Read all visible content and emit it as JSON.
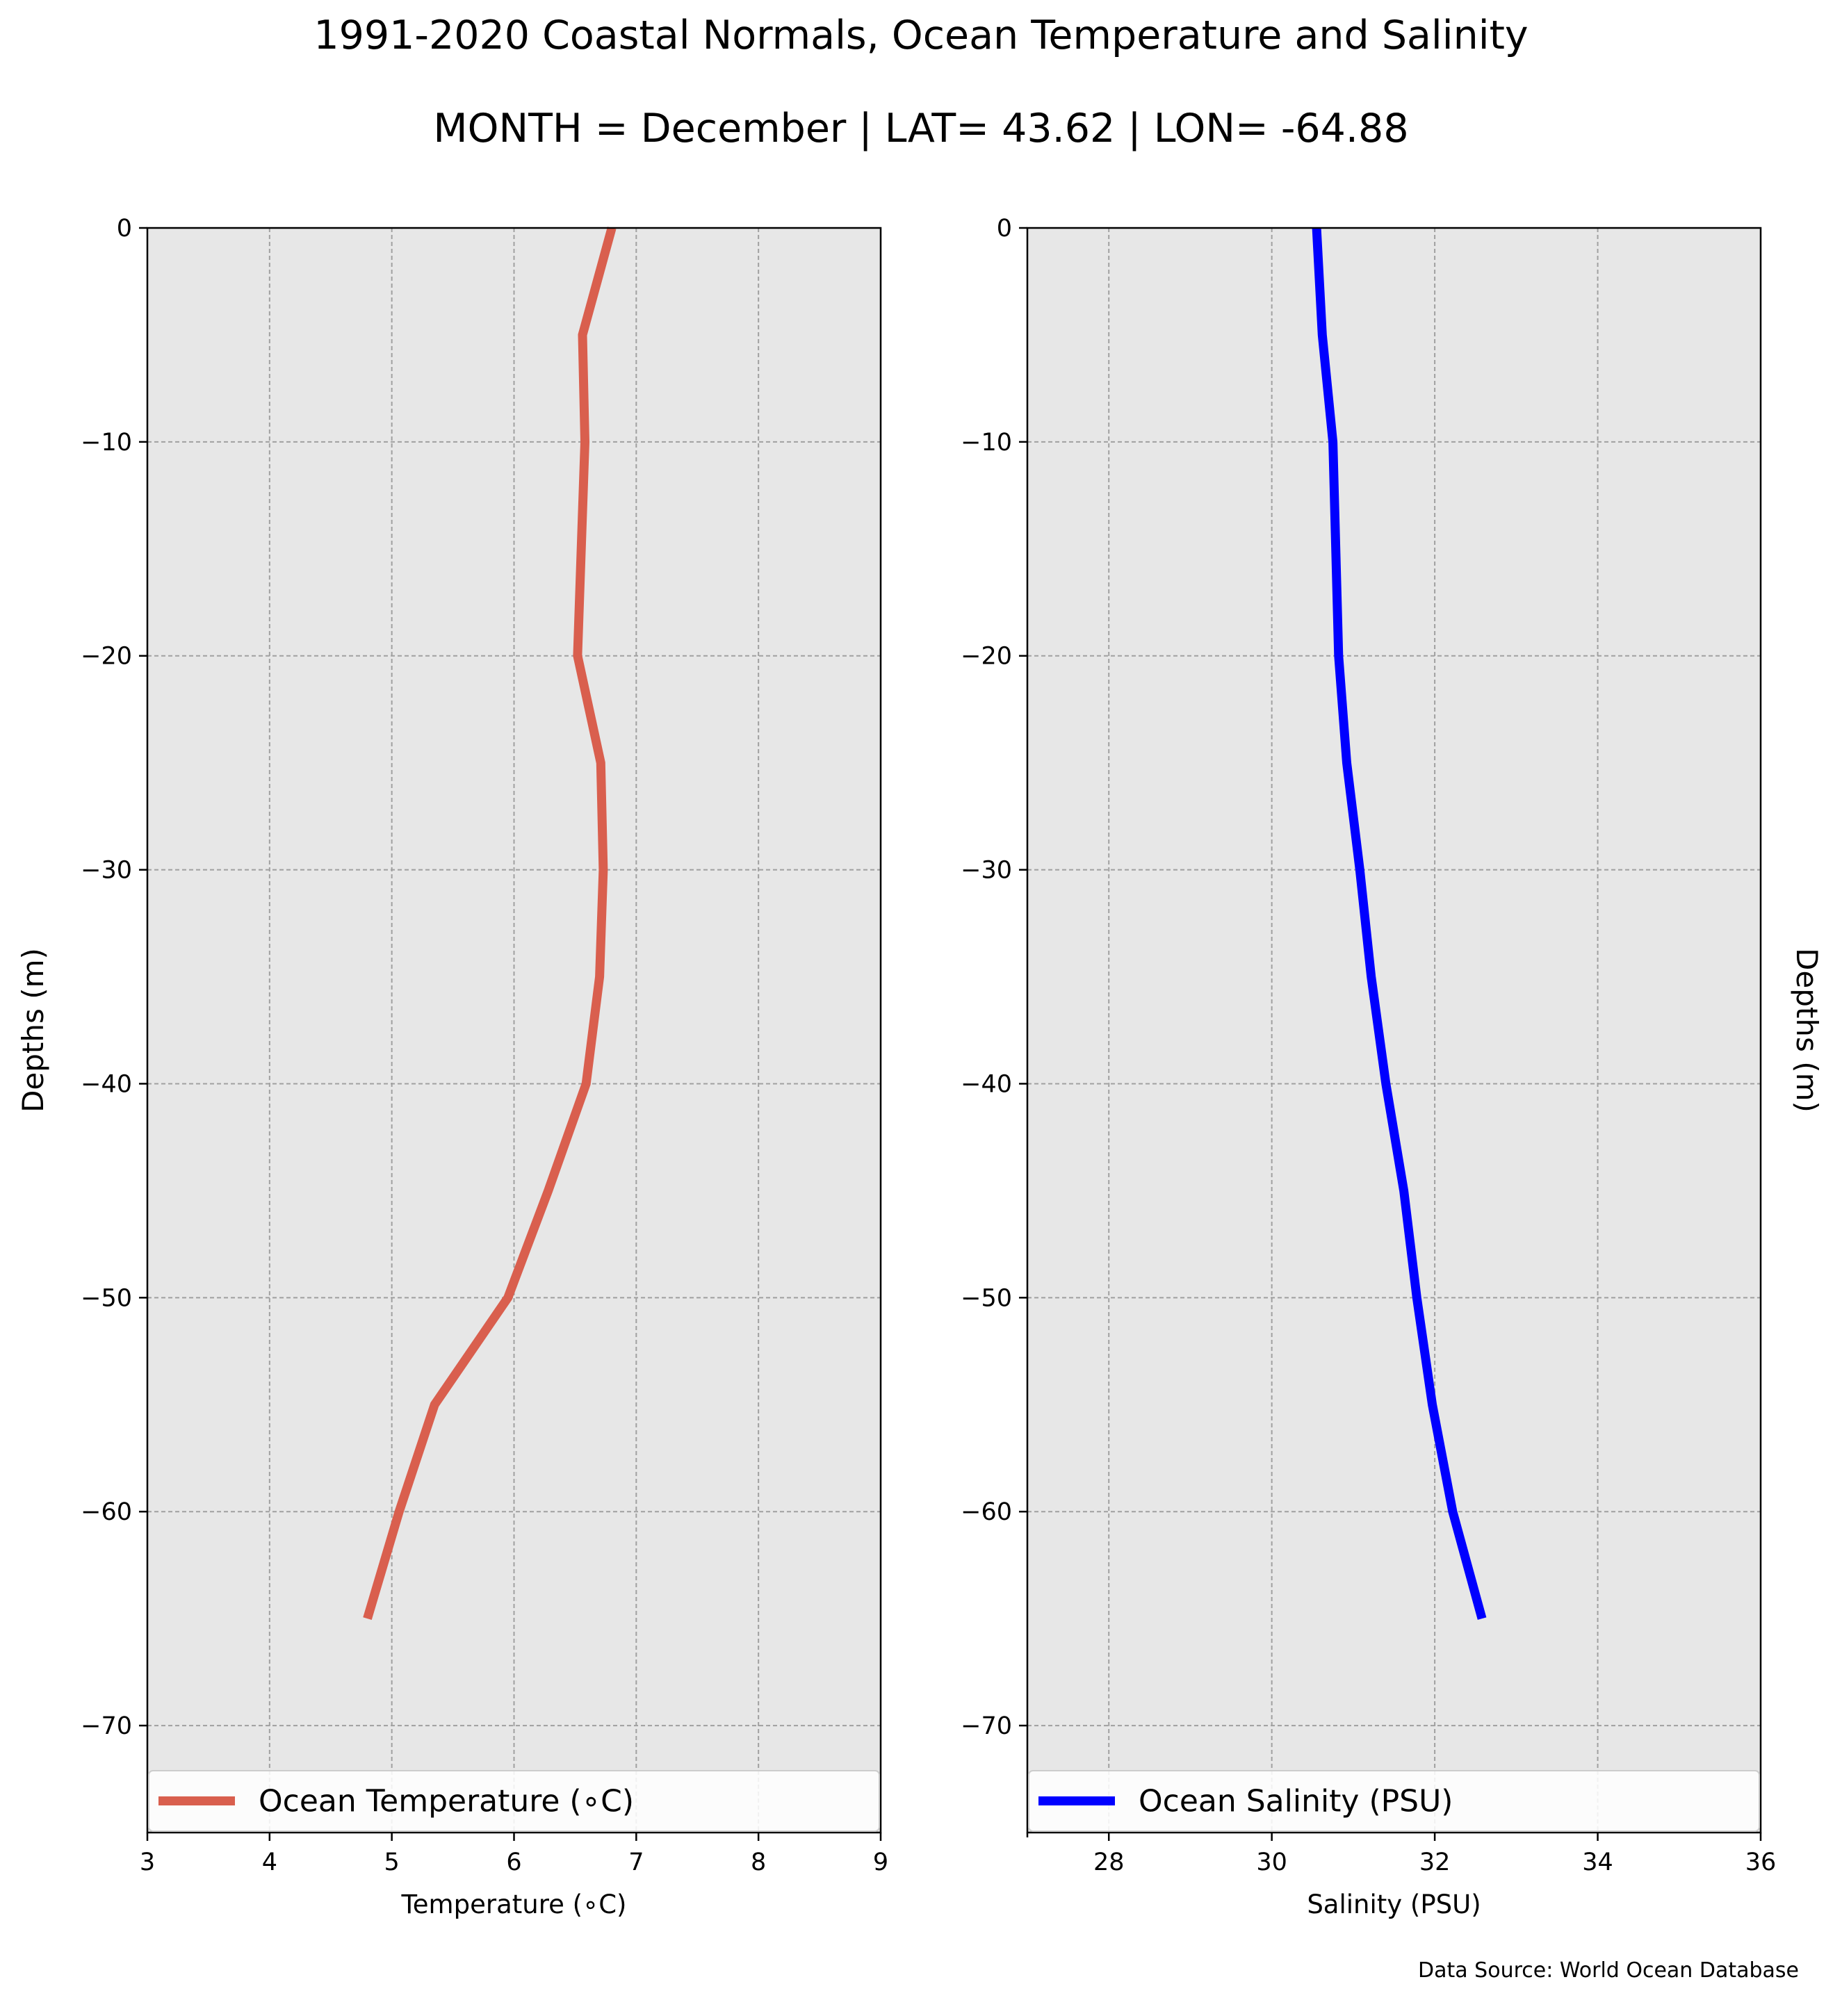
{
  "title": "1991-2020 Coastal Normals, Ocean Temperature and Salinity",
  "subtitle": "MONTH = December | LAT= 43.62 | LON= -64.88",
  "source": "Data Source: World Ocean Database",
  "chart_data": [
    {
      "type": "line",
      "xlabel": "Temperature (∘C)",
      "ylabel": "Depths (m)",
      "xlim": [
        3,
        9
      ],
      "ylim": [
        -75,
        0
      ],
      "xticks": [
        3,
        4,
        5,
        6,
        7,
        8,
        9
      ],
      "yticks": [
        0,
        -10,
        -20,
        -30,
        -40,
        -50,
        -60,
        -70
      ],
      "grid": true,
      "legend_position": "bottom",
      "series": [
        {
          "name": "Ocean Temperature (∘C)",
          "color": "#d95f4e",
          "x": [
            6.8,
            6.56,
            6.58,
            6.52,
            6.71,
            6.73,
            6.7,
            6.59,
            6.28,
            5.95,
            5.35,
            5.06,
            4.8
          ],
          "y": [
            0,
            -5,
            -10,
            -20,
            -25,
            -30,
            -35,
            -40,
            -45,
            -50,
            -55,
            -60,
            -65
          ]
        }
      ]
    },
    {
      "type": "line",
      "xlabel": "Salinity (PSU)",
      "ylabel": "Depths (m)",
      "xlim": [
        27,
        36
      ],
      "ylim": [
        -75,
        0
      ],
      "xticks": [
        28,
        30,
        32,
        34,
        36
      ],
      "yticks": [
        0,
        -10,
        -20,
        -30,
        -40,
        -50,
        -60,
        -70
      ],
      "grid": true,
      "legend_position": "bottom",
      "series": [
        {
          "name": "Ocean Salinity (PSU)",
          "color": "#0000ff",
          "x": [
            30.55,
            30.62,
            30.75,
            30.82,
            30.92,
            31.08,
            31.22,
            31.4,
            31.62,
            31.78,
            31.97,
            32.22,
            32.58
          ],
          "y": [
            0,
            -5,
            -10,
            -20,
            -25,
            -30,
            -35,
            -40,
            -45,
            -50,
            -55,
            -60,
            -65
          ]
        }
      ]
    }
  ]
}
